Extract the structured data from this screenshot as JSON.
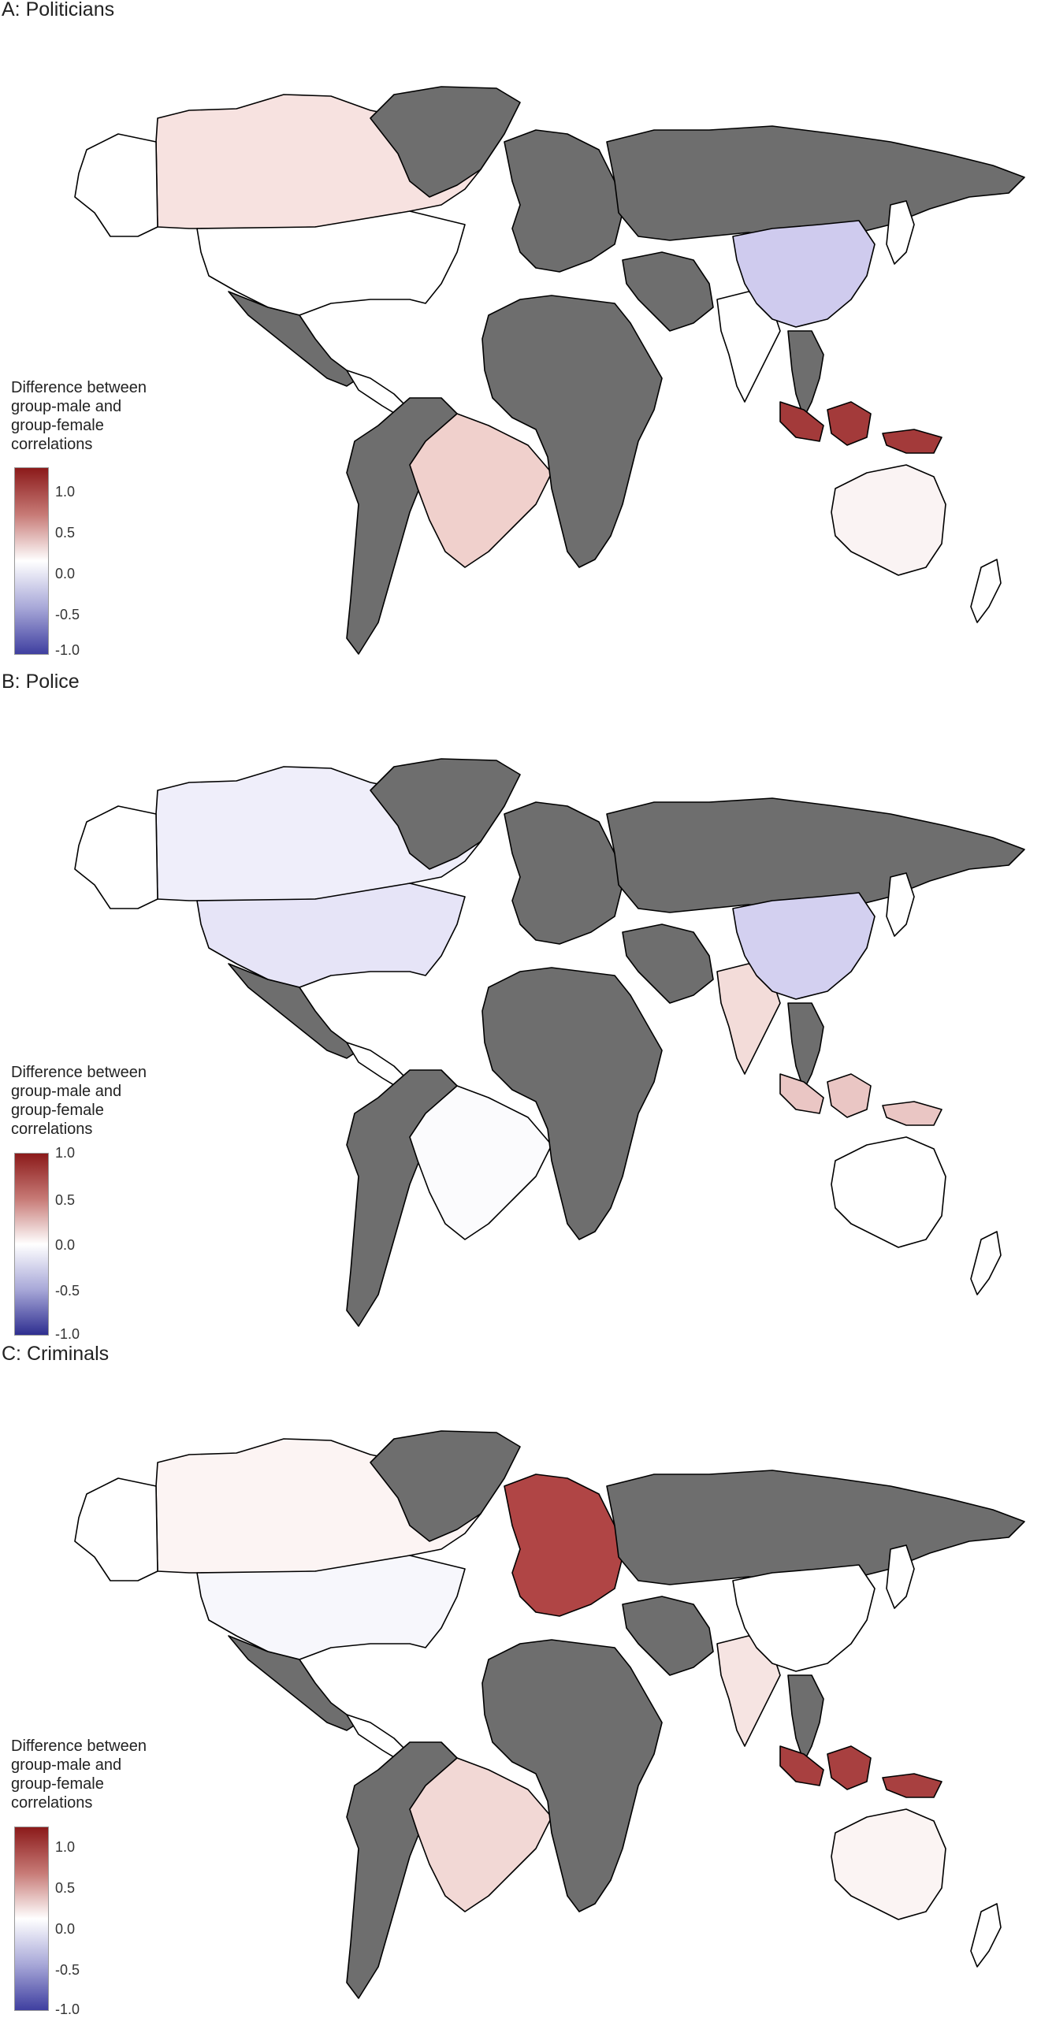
{
  "panels": [
    {
      "title": "A: Politicians",
      "legend": {
        "title_lines": [
          "Difference between",
          "group-male and",
          "group-female",
          "correlations"
        ],
        "ticks": [
          "1.0",
          "0.5",
          "0.0",
          "-0.5",
          "-1.0"
        ]
      },
      "regions": {
        "russia": "#6e6e6e",
        "china": "#cfcbee",
        "usa": "#ffffff",
        "canada": "#f7e2e0",
        "brazil": "#f0d0cc",
        "indonesia": "#a33a3a",
        "australia": "#faf3f3",
        "africa": "#6e6e6e",
        "india": "#ffffff",
        "greenland": "#6e6e6e",
        "europe": "#6e6e6e",
        "mexico": "#6e6e6e",
        "south_america_rest": "#6e6e6e",
        "middle_east": "#6e6e6e",
        "se_asia": "#6e6e6e"
      }
    },
    {
      "title": "B: Police",
      "legend": {
        "title_lines": [
          "Difference between",
          "group-male and",
          "group-female",
          "correlations"
        ],
        "ticks": [
          "1.0",
          "0.5",
          "0.0",
          "-0.5",
          "-1.0"
        ]
      },
      "regions": {
        "russia": "#6e6e6e",
        "china": "#d3d0f0",
        "usa": "#e6e4f7",
        "canada": "#efeefa",
        "brazil": "#fbfbfd",
        "indonesia": "#eac6c4",
        "australia": "#ffffff",
        "africa": "#6e6e6e",
        "india": "#f3dcd9",
        "greenland": "#6e6e6e",
        "europe": "#6e6e6e",
        "mexico": "#6e6e6e",
        "south_america_rest": "#6e6e6e",
        "middle_east": "#6e6e6e",
        "se_asia": "#6e6e6e"
      }
    },
    {
      "title": "C: Criminals",
      "legend": {
        "title_lines": [
          "Difference between",
          "group-male and",
          "group-female",
          "correlations"
        ],
        "ticks": [
          "1.0",
          "0.5",
          "0.0",
          "-0.5",
          "-1.0"
        ]
      },
      "regions": {
        "russia": "#6e6e6e",
        "china": "#ffffff",
        "usa": "#f7f7fc",
        "canada": "#fcf4f3",
        "brazil": "#f2d8d5",
        "indonesia": "#a84040",
        "australia": "#fbf4f3",
        "africa": "#6e6e6e",
        "india": "#f6e4e2",
        "greenland": "#6e6e6e",
        "europe": "#b04545",
        "mexico": "#6e6e6e",
        "south_america_rest": "#6e6e6e",
        "middle_east": "#6e6e6e",
        "se_asia": "#6e6e6e"
      }
    }
  ],
  "colors": {
    "scale_high": "#8b1a1a",
    "scale_mid": "#ffffff",
    "scale_low": "#3f3fa0",
    "no_data": "#6e6e6e",
    "border": "#000000"
  }
}
